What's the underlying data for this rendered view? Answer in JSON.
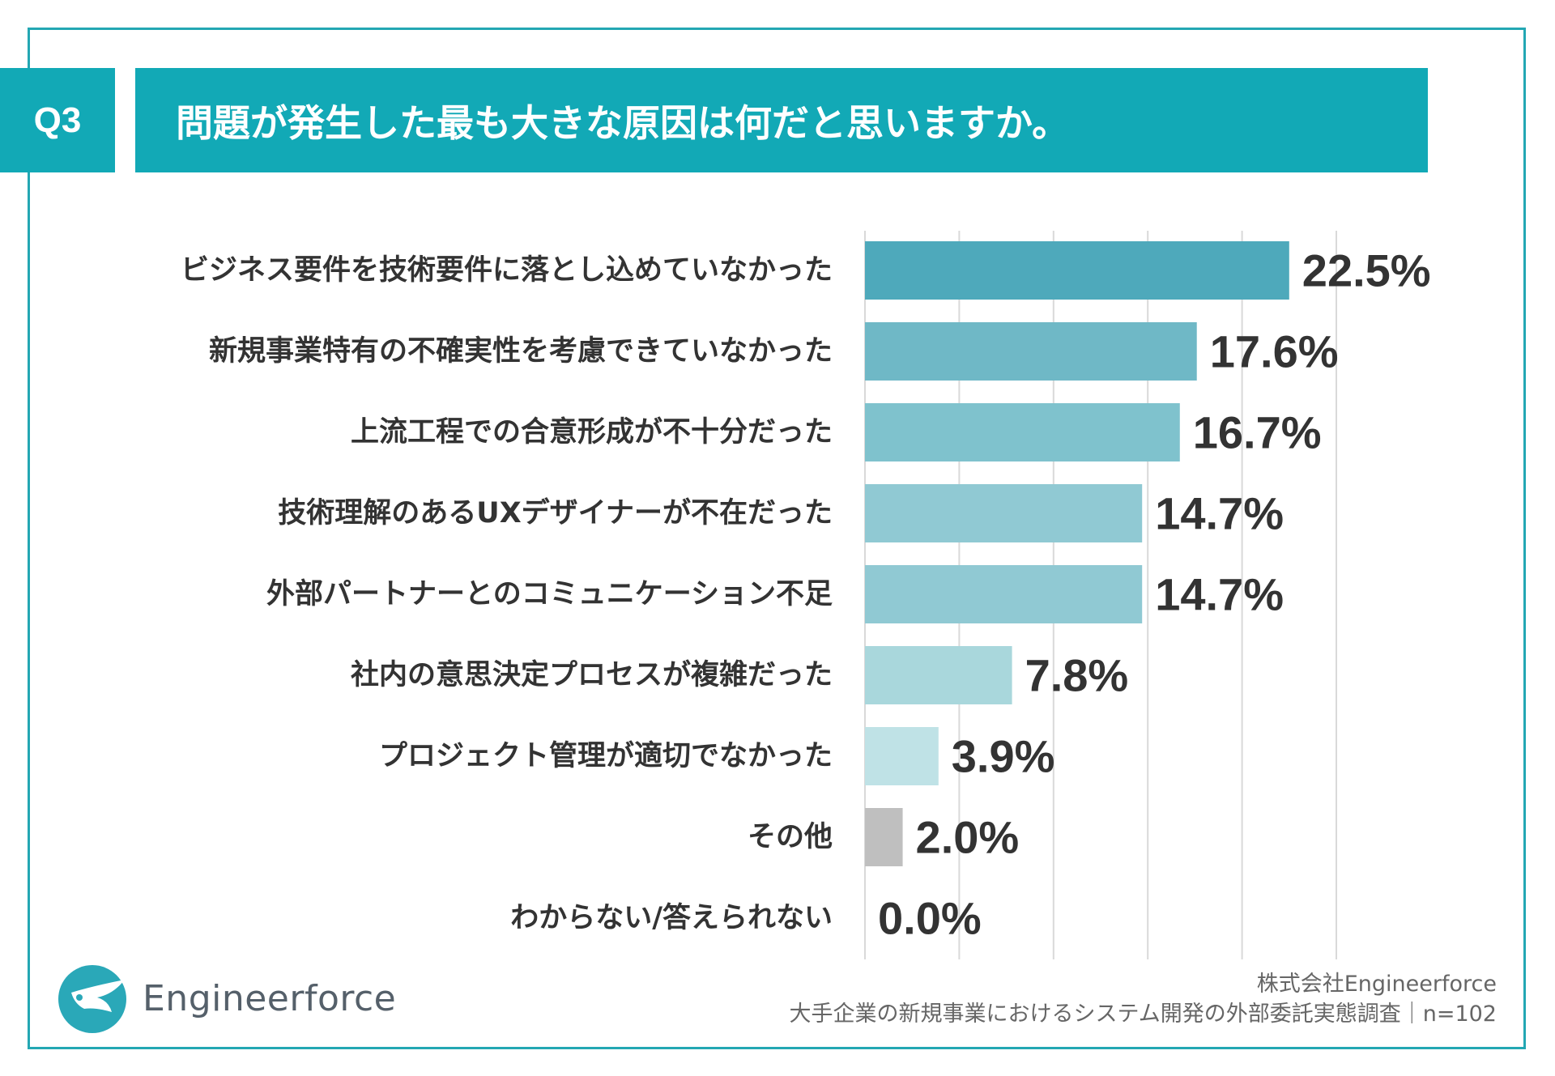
{
  "header": {
    "q_label": "Q3",
    "title": "問題が発生した最も大きな原因は何だと思いますか。"
  },
  "colors": {
    "accent": "#12a9b6",
    "frame": "#23a7b3",
    "bar_other": "#bfbfbf",
    "grid": "#d9d9d9",
    "label": "#333333"
  },
  "chart_data": {
    "type": "bar",
    "orientation": "horizontal",
    "title": "問題が発生した最も大きな原因は何だと思いますか。",
    "xlim": [
      0,
      25
    ],
    "grid": true,
    "categories": [
      "ビジネス要件を技術要件に落とし込めていなかった",
      "新規事業特有の不確実性を考慮できていなかった",
      "上流工程での合意形成が不十分だった",
      "技術理解のあるUXデザイナーが不在だった",
      "外部パートナーとのコミュニケーション不足",
      "社内の意思決定プロセスが複雑だった",
      "プロジェクト管理が適切でなかった",
      "その他",
      "わからない/答えられない"
    ],
    "values": [
      22.5,
      17.6,
      16.7,
      14.7,
      14.7,
      7.8,
      3.9,
      2.0,
      0.0
    ],
    "value_labels": [
      "22.5%",
      "17.6%",
      "16.7%",
      "14.7%",
      "14.7%",
      "7.8%",
      "3.9%",
      "2.0%",
      "0.0%"
    ],
    "bar_colors": [
      "#4ea9bb",
      "#6fb8c6",
      "#7fc2cd",
      "#90c9d3",
      "#90c9d3",
      "#a9d7dc",
      "#bfe2e6",
      "#bfbfbf",
      "#bfbfbf"
    ]
  },
  "footer": {
    "company": "株式会社Engineerforce",
    "survey": "大手企業の新規事業におけるシステム開発の外部委託実態調査｜n=102"
  },
  "logo": {
    "text": "Engineerforce",
    "icon": "bird-logo-icon"
  }
}
